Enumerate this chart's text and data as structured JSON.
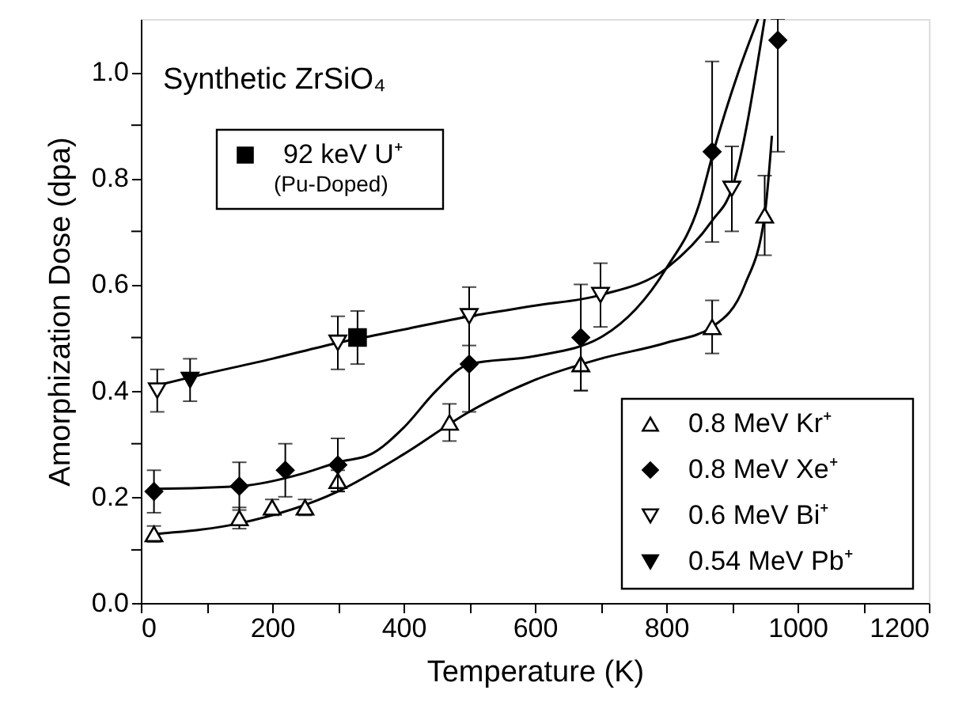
{
  "chart_data": {
    "type": "scatter",
    "title": "Synthetic ZrSiO₄",
    "xlabel": "Temperature (K)",
    "ylabel": "Amorphization Dose (dpa)",
    "xlim": [
      0,
      1200
    ],
    "ylim": [
      0,
      1.1
    ],
    "xticks": [
      0,
      {
        "value": 100,
        "label": null
      },
      200,
      {
        "value": 300,
        "label": null
      },
      400,
      {
        "value": 500,
        "label": null
      },
      600,
      {
        "value": 700,
        "label": null
      },
      800,
      {
        "value": 900,
        "label": null
      },
      1000,
      {
        "value": 1100,
        "label": null
      },
      1200
    ],
    "yticks": [
      {
        "value": 0,
        "label": "0.0"
      },
      {
        "value": 0.1,
        "label": null
      },
      {
        "value": 0.2,
        "label": "0.2"
      },
      {
        "value": 0.3,
        "label": null
      },
      {
        "value": 0.4,
        "label": "0.4"
      },
      {
        "value": 0.5,
        "label": null
      },
      {
        "value": 0.6,
        "label": "0.6"
      },
      {
        "value": 0.7,
        "label": null
      },
      {
        "value": 0.8,
        "label": "0.8"
      },
      {
        "value": 0.9,
        "label": null
      },
      {
        "value": 1.0,
        "label": "1.0"
      }
    ],
    "grid": false,
    "legend": "bottom right",
    "series": [
      {
        "type": "line",
        "color": "#000000",
        "marker": "none",
        "x": [
          20,
          150,
          300,
          400,
          500,
          600,
          700,
          800,
          870,
          920,
          950,
          961
        ],
        "values": [
          0.13,
          0.15,
          0.21,
          0.28,
          0.36,
          0.42,
          0.46,
          0.49,
          0.52,
          0.6,
          0.73,
          0.88
        ]
      },
      {
        "type": "line",
        "color": "#000000",
        "marker": "none",
        "x": [
          20,
          150,
          250,
          300,
          350,
          400,
          450,
          500,
          600,
          700,
          800,
          850,
          872,
          910,
          940
        ],
        "values": [
          0.215,
          0.22,
          0.245,
          0.265,
          0.28,
          0.33,
          0.4,
          0.45,
          0.465,
          0.5,
          0.63,
          0.75,
          0.85,
          1.0,
          1.1
        ]
      },
      {
        "type": "line",
        "color": "#000000",
        "marker": "none",
        "x": [
          25,
          75,
          200,
          300,
          400,
          500,
          600,
          700,
          800,
          870,
          900,
          950
        ],
        "values": [
          0.41,
          0.425,
          0.46,
          0.49,
          0.515,
          0.54,
          0.56,
          0.58,
          0.63,
          0.72,
          0.78,
          1.1
        ]
      },
      {
        "name": "0.8 MeV Kr⁺",
        "color": "#ffffff",
        "marker": "triangle",
        "x": [
          20,
          150,
          200,
          250,
          300,
          470,
          670,
          870,
          950
        ],
        "values": [
          0.13,
          0.16,
          0.18,
          0.18,
          0.23,
          0.34,
          0.45,
          0.52,
          0.73
        ],
        "errors": [
          0.015,
          0.02,
          0.015,
          0.015,
          0.02,
          0.035,
          0.05,
          0.05,
          0.075
        ]
      },
      {
        "name": "0.8 MeV Xe⁺",
        "color": "#000000",
        "marker": "diamond",
        "x": [
          20,
          150,
          220,
          300,
          500,
          670,
          870,
          970
        ],
        "values": [
          0.21,
          0.22,
          0.25,
          0.26,
          0.45,
          0.5,
          0.85,
          1.06
        ],
        "errors": [
          0.04,
          0.045,
          0.05,
          0.05,
          0.09,
          0.1,
          0.17,
          [
            0.85,
            1.1
          ]
        ]
      },
      {
        "name": "0.6 MeV Bi⁺",
        "color": "#ffffff",
        "marker": "triangle-down",
        "x": [
          25,
          300,
          500,
          700,
          900
        ],
        "values": [
          0.4,
          0.49,
          0.54,
          0.58,
          0.78
        ],
        "errors": [
          0.04,
          0.05,
          0.055,
          0.06,
          0.08
        ]
      },
      {
        "name": "0.54 MeV Pb⁺",
        "color": "#000000",
        "marker": "triangle-down",
        "x": [
          75
        ],
        "values": [
          0.42
        ],
        "errors": [
          0.04
        ]
      },
      {
        "name": "92 keV U⁺\n(Pu-Doped)",
        "color": "#000000",
        "marker": "square",
        "x": [
          330
        ],
        "values": [
          0.5
        ],
        "errors": [
          0.05
        ]
      }
    ]
  }
}
